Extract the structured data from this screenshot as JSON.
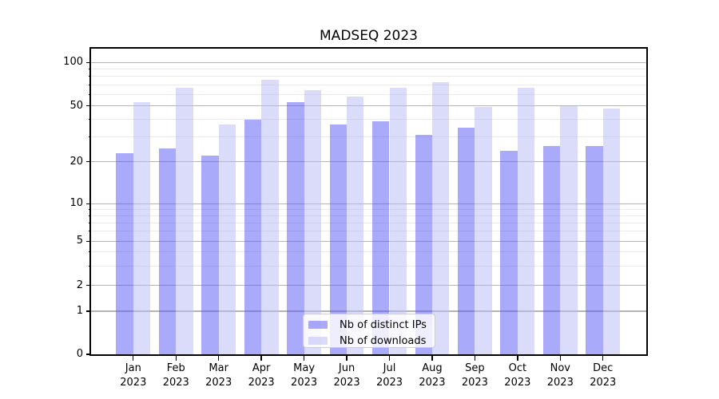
{
  "chart_data": {
    "type": "bar",
    "title": "MADSEQ 2023",
    "categories": [
      "Jan 2023",
      "Feb 2023",
      "Mar 2023",
      "Apr 2023",
      "May 2023",
      "Jun 2023",
      "Jul 2023",
      "Aug 2023",
      "Sep 2023",
      "Oct 2023",
      "Nov 2023",
      "Dec 2023"
    ],
    "series": [
      {
        "name": "Nb of distinct IPs",
        "color": "#5555f5",
        "alpha": 0.5,
        "values": [
          23,
          25,
          22,
          40,
          53,
          37,
          39,
          31,
          35,
          24,
          26,
          26
        ]
      },
      {
        "name": "Nb of downloads",
        "color": "#b7b7f5",
        "alpha": 0.5,
        "values": [
          53,
          67,
          37,
          76,
          64,
          58,
          67,
          73,
          49,
          67,
          50,
          48
        ]
      }
    ],
    "xlabel": "",
    "ylabel": "",
    "y_scale": "symlog",
    "y_ticks": [
      0,
      1,
      2,
      5,
      10,
      20,
      50,
      100
    ],
    "ylim": [
      0,
      125
    ],
    "grid": "horizontal major + minor",
    "legend_position": "lower center",
    "colors": {
      "major_gridline": "#b4b4b4",
      "minor_gridline": "#e9e9e9",
      "axis": "#000000",
      "text": "#000000"
    }
  }
}
